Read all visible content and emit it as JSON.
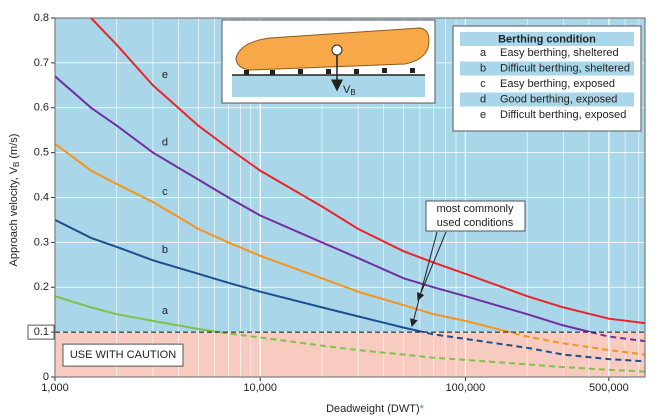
{
  "chart_data": {
    "type": "line",
    "log_x": true,
    "grid": true,
    "xlabel": {
      "text": "Deadweight (DWT)",
      "note_mark": "*"
    },
    "ylabel": {
      "text": "Approach velocity,",
      "symbol": "V",
      "subscript": "B",
      "unit": "(m/s)"
    },
    "x": [
      1000,
      1500,
      2000,
      3000,
      5000,
      7000,
      10000,
      20000,
      30000,
      50000,
      70000,
      100000,
      200000,
      300000,
      500000,
      750000
    ],
    "xlim": [
      1000,
      750000
    ],
    "xticks": [
      {
        "value": 1000,
        "label": "1,000"
      },
      {
        "value": 10000,
        "label": "10,000"
      },
      {
        "value": 100000,
        "label": "100,000"
      },
      {
        "value": 500000,
        "label": "500,000"
      }
    ],
    "xminorticks": [
      2000,
      3000,
      4000,
      5000,
      6000,
      7000,
      8000,
      9000,
      20000,
      30000,
      40000,
      50000,
      60000,
      70000,
      80000,
      90000,
      200000,
      300000,
      400000,
      600000,
      700000
    ],
    "ylim": [
      0,
      0.8
    ],
    "yticks": [
      0,
      0.1,
      0.2,
      0.3,
      0.4,
      0.5,
      0.6,
      0.7,
      0.8
    ],
    "caution_line": 0.1,
    "caution_text": "USE WITH CAUTION",
    "legend_title": "Berthing condition",
    "series": [
      {
        "name": "a",
        "label": "Easy berthing, sheltered",
        "color": "#7ec24a",
        "values": [
          0.18,
          0.155,
          0.14,
          0.125,
          0.107,
          0.097,
          0.088,
          0.07,
          0.06,
          0.05,
          0.043,
          0.038,
          0.028,
          0.022,
          0.016,
          0.012
        ]
      },
      {
        "name": "b",
        "label": "Difficult berthing, sheltered",
        "color": "#1d4f8f",
        "values": [
          0.35,
          0.31,
          0.29,
          0.26,
          0.23,
          0.21,
          0.19,
          0.155,
          0.135,
          0.11,
          0.095,
          0.085,
          0.065,
          0.05,
          0.04,
          0.035
        ]
      },
      {
        "name": "c",
        "label": "Easy berthing, exposed",
        "color": "#f7941d",
        "values": [
          0.52,
          0.46,
          0.43,
          0.39,
          0.33,
          0.3,
          0.27,
          0.22,
          0.19,
          0.16,
          0.14,
          0.125,
          0.09,
          0.075,
          0.06,
          0.05
        ]
      },
      {
        "name": "d",
        "label": "Good berthing, exposed",
        "color": "#7030a0",
        "values": [
          0.67,
          0.6,
          0.56,
          0.5,
          0.44,
          0.4,
          0.36,
          0.3,
          0.265,
          0.22,
          0.2,
          0.18,
          0.14,
          0.115,
          0.09,
          0.08
        ]
      },
      {
        "name": "e",
        "label": "Difficult berthing, exposed",
        "color": "#e8262a",
        "values": [
          null,
          0.8,
          0.74,
          0.65,
          0.56,
          0.51,
          0.46,
          0.38,
          0.33,
          0.28,
          0.255,
          0.23,
          0.18,
          0.155,
          0.13,
          0.12
        ]
      }
    ],
    "annotation": {
      "lines": [
        "most commonly",
        "used conditions"
      ]
    }
  }
}
